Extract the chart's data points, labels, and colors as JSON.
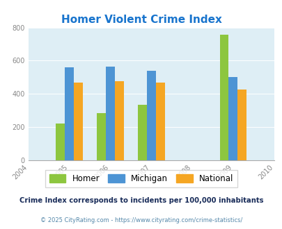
{
  "title": "Homer Violent Crime Index",
  "title_color": "#1874cd",
  "years": [
    2004,
    2005,
    2006,
    2007,
    2008,
    2009,
    2010
  ],
  "data_years": [
    2005,
    2006,
    2007,
    2009
  ],
  "homer": [
    220,
    285,
    335,
    755
  ],
  "michigan": [
    560,
    565,
    540,
    500
  ],
  "national": [
    470,
    475,
    470,
    425
  ],
  "homer_color": "#8dc63f",
  "michigan_color": "#4d94d4",
  "national_color": "#f5a623",
  "bg_color": "#deeef5",
  "ylim": [
    0,
    800
  ],
  "yticks": [
    0,
    200,
    400,
    600,
    800
  ],
  "bar_width": 0.22,
  "legend_labels": [
    "Homer",
    "Michigan",
    "National"
  ],
  "footnote1": "Crime Index corresponds to incidents per 100,000 inhabitants",
  "footnote2": "© 2025 CityRating.com - https://www.cityrating.com/crime-statistics/",
  "footnote1_color": "#1a2d5a",
  "footnote2_color": "#5588aa"
}
